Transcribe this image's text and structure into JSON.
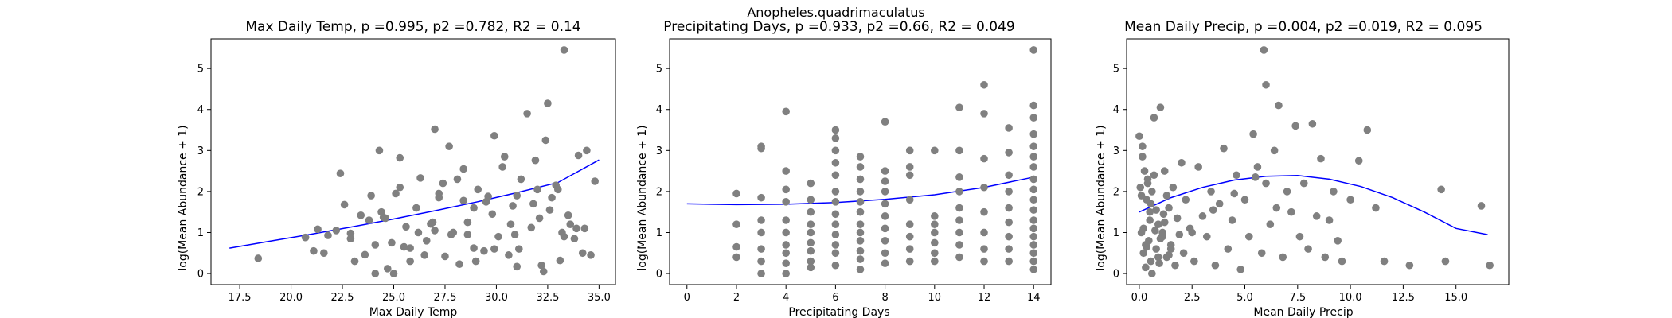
{
  "figure": {
    "suptitle": "Anopheles.quadrimaculatus",
    "point_color": "#808080",
    "fit_color": "#0000ff"
  },
  "chart_data": [
    {
      "type": "scatter",
      "title": "Max Daily Temp, p =0.995, p2 =0.782, R2 = 0.14",
      "xlabel": "Max Daily Temp",
      "ylabel": "log(Mean Abundance + 1)",
      "xlim": [
        16.1,
        35.8
      ],
      "ylim": [
        -0.27,
        5.72
      ],
      "xticks": [
        17.5,
        20.0,
        22.5,
        25.0,
        27.5,
        30.0,
        32.5,
        35.0
      ],
      "xtick_labels": [
        "17.5",
        "20.0",
        "22.5",
        "25.0",
        "27.5",
        "30.0",
        "32.5",
        "35.0"
      ],
      "yticks": [
        0,
        1,
        2,
        3,
        4,
        5
      ],
      "ytick_labels": [
        "0",
        "1",
        "2",
        "3",
        "4",
        "5"
      ],
      "fit": {
        "x": [
          17.0,
          19.0,
          21.0,
          23.0,
          25.0,
          27.0,
          29.0,
          31.0,
          33.0,
          35.0
        ],
        "y": [
          0.62,
          0.79,
          0.96,
          1.14,
          1.33,
          1.53,
          1.74,
          1.97,
          2.22,
          2.77
        ]
      },
      "points": {
        "x": [
          18.4,
          20.7,
          21.1,
          21.3,
          21.6,
          21.8,
          22.2,
          22.4,
          22.6,
          22.9,
          23.1,
          23.4,
          23.6,
          23.9,
          24.1,
          24.3,
          24.5,
          24.7,
          24.9,
          25.1,
          25.3,
          25.6,
          25.8,
          26.1,
          26.3,
          26.6,
          26.8,
          27.0,
          27.2,
          27.5,
          27.7,
          27.9,
          28.2,
          28.4,
          28.6,
          28.9,
          29.1,
          29.4,
          29.6,
          29.9,
          30.1,
          30.3,
          30.6,
          30.8,
          31.0,
          31.2,
          31.5,
          31.7,
          31.9,
          32.1,
          32.3,
          32.5,
          32.7,
          32.9,
          33.1,
          33.3,
          33.5,
          33.8,
          34.0,
          34.3,
          34.6,
          34.8,
          24.1,
          24.6,
          25.3,
          26.5,
          27.2,
          27.8,
          28.4,
          29.0,
          29.8,
          30.4,
          31.1,
          31.8,
          32.4,
          33.0,
          33.6,
          34.2,
          23.8,
          25.0,
          26.2,
          27.4,
          28.6,
          29.9,
          31.0,
          32.2,
          33.3,
          22.9,
          24.4,
          25.8,
          27.0,
          28.9,
          30.7,
          32.0,
          33.2,
          34.4,
          25.5,
          26.9,
          28.1,
          29.5,
          30.9,
          32.6,
          33.9
        ],
        "y": [
          0.37,
          0.88,
          0.55,
          1.08,
          0.5,
          0.93,
          1.05,
          2.44,
          1.68,
          0.98,
          0.3,
          1.42,
          0.46,
          1.9,
          0.0,
          3.0,
          1.37,
          0.12,
          0.75,
          1.95,
          2.82,
          1.14,
          0.62,
          1.6,
          2.33,
          0.8,
          1.21,
          3.52,
          1.95,
          0.42,
          3.1,
          1.0,
          0.23,
          1.78,
          1.25,
          0.62,
          2.05,
          0.55,
          1.88,
          3.36,
          0.9,
          2.6,
          0.45,
          1.65,
          0.17,
          2.3,
          3.9,
          1.12,
          2.76,
          1.35,
          0.05,
          4.15,
          1.85,
          2.15,
          0.32,
          5.45,
          1.42,
          0.85,
          2.88,
          1.1,
          0.45,
          2.25,
          0.7,
          1.35,
          2.1,
          0.45,
          1.85,
          0.95,
          2.55,
          0.3,
          1.45,
          2.85,
          0.6,
          1.7,
          3.25,
          2.05,
          1.2,
          0.5,
          1.3,
          0.0,
          1.0,
          2.2,
          0.95,
          0.6,
          1.9,
          0.2,
          0.9,
          0.85,
          1.5,
          0.3,
          1.05,
          1.6,
          1.2,
          2.05,
          1.0,
          3.0,
          0.65,
          1.25,
          2.3,
          1.75,
          0.95,
          1.55,
          1.1
        ]
      }
    },
    {
      "type": "scatter",
      "title": "Anopheles.quadrimaculatus\nPrecipitating Days, p =0.933, p2 =0.66, R2 = 0.049",
      "title_line2": "Precipitating Days, p =0.933, p2 =0.66, R2 = 0.049",
      "xlabel": "Precipitating Days",
      "ylabel": "log(Mean Abundance + 1)",
      "xlim": [
        -0.7,
        14.7
      ],
      "ylim": [
        -0.27,
        5.72
      ],
      "xticks": [
        0,
        2,
        4,
        6,
        8,
        10,
        12,
        14
      ],
      "xtick_labels": [
        "0",
        "2",
        "4",
        "6",
        "8",
        "10",
        "12",
        "14"
      ],
      "yticks": [
        0,
        1,
        2,
        3,
        4,
        5
      ],
      "ytick_labels": [
        "0",
        "1",
        "2",
        "3",
        "4",
        "5"
      ],
      "fit": {
        "x": [
          0,
          2,
          4,
          6,
          8,
          10,
          12,
          14
        ],
        "y": [
          1.7,
          1.68,
          1.69,
          1.73,
          1.81,
          1.92,
          2.1,
          2.35
        ]
      },
      "points": {
        "x": [
          2,
          2,
          2,
          2,
          3,
          3,
          3,
          3,
          3,
          3,
          3,
          3,
          4,
          4,
          4,
          4,
          4,
          4,
          4,
          4,
          4,
          4,
          5,
          5,
          5,
          5,
          5,
          5,
          5,
          5,
          5,
          6,
          6,
          6,
          6,
          6,
          6,
          6,
          6,
          6,
          6,
          6,
          6,
          6,
          7,
          7,
          7,
          7,
          7,
          7,
          7,
          7,
          7,
          7,
          7,
          7,
          8,
          8,
          8,
          8,
          8,
          8,
          8,
          8,
          8,
          8,
          9,
          9,
          9,
          9,
          9,
          9,
          9,
          9,
          10,
          10,
          10,
          10,
          10,
          10,
          10,
          11,
          11,
          11,
          11,
          11,
          11,
          11,
          11,
          11,
          12,
          12,
          12,
          12,
          12,
          12,
          12,
          12,
          13,
          13,
          13,
          13,
          13,
          13,
          13,
          13,
          13,
          14,
          14,
          14,
          14,
          14,
          14,
          14,
          14,
          14,
          14,
          14,
          14,
          14,
          14,
          14,
          14,
          14,
          14
        ],
        "y": [
          1.95,
          1.2,
          0.65,
          0.4,
          3.1,
          3.05,
          1.85,
          1.3,
          1.0,
          0.6,
          0.3,
          0.0,
          3.95,
          2.5,
          2.05,
          1.75,
          1.3,
          1.0,
          0.7,
          0.5,
          0.25,
          0.0,
          2.2,
          1.8,
          1.5,
          1.2,
          1.0,
          0.75,
          0.55,
          0.3,
          0.15,
          3.5,
          3.3,
          3.0,
          2.7,
          2.4,
          2.0,
          1.75,
          1.45,
          1.2,
          0.95,
          0.7,
          0.5,
          0.2,
          2.85,
          2.6,
          2.3,
          2.0,
          1.75,
          1.5,
          1.2,
          1.0,
          0.8,
          0.55,
          0.35,
          0.1,
          3.7,
          2.5,
          2.25,
          2.0,
          1.7,
          1.4,
          1.1,
          0.8,
          0.5,
          0.25,
          3.0,
          2.6,
          2.4,
          1.8,
          1.2,
          0.9,
          0.6,
          0.3,
          3.0,
          1.4,
          1.2,
          1.0,
          0.75,
          0.5,
          0.3,
          4.05,
          3.0,
          2.35,
          2.0,
          1.6,
          1.3,
          1.0,
          0.7,
          0.4,
          4.6,
          3.9,
          2.8,
          2.1,
          1.5,
          1.0,
          0.6,
          0.3,
          3.55,
          2.95,
          2.4,
          2.0,
          1.6,
          1.25,
          0.9,
          0.6,
          0.3,
          5.45,
          4.1,
          3.8,
          3.4,
          3.1,
          2.85,
          2.6,
          2.3,
          2.05,
          1.8,
          1.55,
          1.3,
          1.1,
          0.9,
          0.7,
          0.5,
          0.3,
          0.1
        ]
      }
    },
    {
      "type": "scatter",
      "title": "Mean Daily Precip, p =0.004, p2 =0.019, R2 = 0.095",
      "xlabel": "Mean Daily Precip",
      "ylabel": "log(Mean Abundance + 1)",
      "xlim": [
        -0.6,
        17.5
      ],
      "ylim": [
        -0.27,
        5.72
      ],
      "xticks": [
        0.0,
        2.5,
        5.0,
        7.5,
        10.0,
        12.5,
        15.0
      ],
      "xtick_labels": [
        "0.0",
        "2.5",
        "5.0",
        "7.5",
        "10.0",
        "12.5",
        "15.0"
      ],
      "yticks": [
        0,
        1,
        2,
        3,
        4,
        5
      ],
      "ytick_labels": [
        "0",
        "1",
        "2",
        "3",
        "4",
        "5"
      ],
      "fit": {
        "x": [
          0.0,
          1.5,
          3.0,
          4.5,
          6.0,
          7.5,
          9.0,
          10.5,
          12.0,
          13.5,
          15.0,
          16.5
        ],
        "y": [
          1.5,
          1.85,
          2.1,
          2.28,
          2.37,
          2.39,
          2.3,
          2.12,
          1.85,
          1.5,
          1.1,
          0.95
        ]
      },
      "points": {
        "x": [
          0.0,
          0.05,
          0.1,
          0.15,
          0.2,
          0.25,
          0.3,
          0.35,
          0.4,
          0.45,
          0.5,
          0.55,
          0.6,
          0.7,
          0.8,
          0.9,
          1.0,
          1.1,
          1.2,
          1.3,
          1.4,
          1.5,
          1.6,
          1.7,
          1.8,
          1.9,
          2.0,
          2.1,
          2.2,
          2.4,
          2.6,
          2.8,
          3.0,
          3.2,
          3.4,
          3.6,
          3.8,
          4.0,
          4.2,
          4.4,
          4.6,
          4.8,
          5.0,
          5.2,
          5.4,
          5.6,
          5.8,
          6.0,
          6.2,
          6.4,
          6.6,
          6.8,
          7.0,
          7.2,
          7.4,
          7.6,
          7.8,
          8.0,
          8.2,
          8.4,
          8.6,
          8.8,
          9.0,
          9.2,
          9.4,
          9.6,
          10.0,
          10.4,
          10.8,
          11.2,
          11.6,
          12.8,
          14.3,
          14.5,
          16.2,
          16.6,
          0.1,
          0.3,
          0.5,
          0.7,
          0.9,
          1.1,
          1.3,
          1.5,
          0.2,
          0.4,
          0.6,
          0.8,
          1.0,
          1.2,
          1.4,
          0.15,
          0.35,
          0.55,
          0.75,
          0.95,
          1.15,
          2.5,
          3.5,
          4.5,
          5.5,
          6.5,
          5.9,
          6.0
        ],
        "y": [
          3.35,
          2.1,
          1.0,
          3.1,
          0.5,
          2.5,
          0.15,
          1.8,
          2.3,
          0.8,
          1.5,
          0.3,
          2.0,
          3.8,
          0.6,
          1.2,
          4.05,
          0.9,
          2.5,
          0.4,
          1.6,
          0.7,
          2.1,
          0.2,
          1.35,
          0.95,
          2.7,
          0.5,
          1.8,
          1.1,
          0.3,
          2.6,
          1.4,
          0.9,
          2.0,
          0.2,
          1.7,
          3.05,
          0.6,
          1.3,
          2.4,
          0.1,
          1.8,
          0.9,
          3.4,
          2.6,
          0.5,
          4.6,
          1.2,
          3.0,
          4.1,
          0.4,
          2.0,
          1.5,
          3.6,
          0.9,
          2.2,
          0.6,
          3.65,
          1.4,
          2.8,
          0.4,
          1.3,
          2.0,
          0.8,
          0.3,
          1.8,
          2.75,
          3.5,
          1.6,
          0.3,
          0.2,
          2.05,
          0.3,
          1.65,
          0.2,
          1.9,
          0.7,
          1.3,
          2.4,
          0.4,
          1.0,
          1.9,
          0.6,
          1.1,
          2.2,
          0.0,
          1.55,
          0.85,
          1.25,
          0.45,
          2.85,
          0.65,
          1.7,
          1.05,
          0.25,
          1.45,
          1.0,
          1.55,
          1.95,
          2.35,
          1.6,
          5.45,
          2.2
        ]
      }
    }
  ]
}
